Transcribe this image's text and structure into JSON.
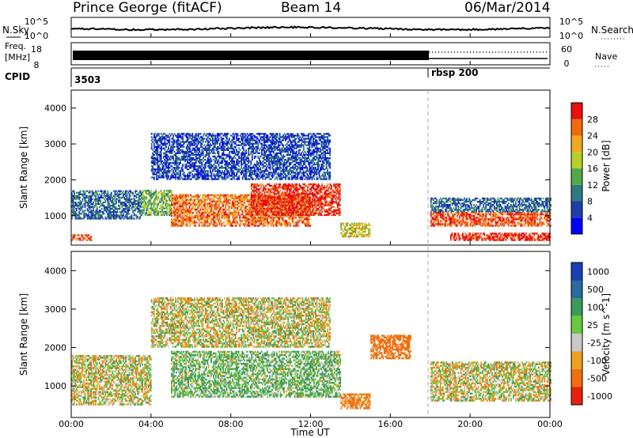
{
  "header": {
    "station": "Prince George (fitACF)",
    "beam": "Beam 14",
    "date": "06/Mar/2014"
  },
  "top_panels": {
    "nsky_label": "N.Sky",
    "nsearch_label": "N.Search",
    "nsky_ticks": [
      "10^5",
      "10^0"
    ],
    "nsearch_ticks": [
      "10^5",
      "10^0"
    ],
    "freq_label": "Freq.",
    "freq_unit": "[MHz]",
    "freq_ticks": [
      "18",
      "8"
    ],
    "nave_label": "Nave",
    "nave_ticks": [
      "60",
      "0"
    ],
    "cpid_label": "CPID",
    "cpid_segments": [
      {
        "label": "3503",
        "start_hour": 0.0
      },
      {
        "label": "rbsp 200",
        "start_hour": 18.0
      }
    ]
  },
  "power_panel": {
    "ylabel": "Slant Range [km]",
    "yticks": [
      1000,
      2000,
      3000,
      4000
    ],
    "colorbar_label": "Power [dB]",
    "colorbar_ticks": [
      "28",
      "24",
      "20",
      "16",
      "12",
      "8",
      "4"
    ],
    "colors": [
      "#0000ff",
      "#1e3fa8",
      "#2f7a82",
      "#53a84a",
      "#b8cf2a",
      "#f0a820",
      "#f06a10",
      "#e81010"
    ]
  },
  "velocity_panel": {
    "ylabel": "Slant Range [km]",
    "yticks": [
      1000,
      2000,
      3000,
      4000
    ],
    "colorbar_label": "Velocity [m s^-1]",
    "colorbar_ticks": [
      "1000",
      "500",
      "100",
      "25",
      "-25",
      "-100",
      "-500",
      "-1000"
    ],
    "colors": [
      "#1a3fb0",
      "#2a6aa0",
      "#3d9a5a",
      "#6ac840",
      "#c8c8c8",
      "#f0a020",
      "#f07010",
      "#e82010"
    ]
  },
  "xaxis": {
    "label": "Time UT",
    "ticks": [
      "00:00",
      "04:00",
      "08:00",
      "12:00",
      "16:00",
      "20:00",
      "00:00"
    ]
  },
  "chart_data": [
    {
      "type": "heatmap",
      "title": "Power",
      "xlabel": "Time UT",
      "ylabel": "Slant Range [km]",
      "xlim": [
        0,
        24
      ],
      "ylim": [
        180,
        4500
      ],
      "colorbar": {
        "label": "Power [dB]",
        "range": [
          0,
          30
        ]
      },
      "echo_bands": [
        {
          "t0": 0.0,
          "t1": 3.5,
          "r0": 900,
          "r1": 1700,
          "value": 8
        },
        {
          "t0": 3.5,
          "t1": 5.0,
          "r0": 1000,
          "r1": 1700,
          "value": 14
        },
        {
          "t0": 5.0,
          "t1": 12.0,
          "r0": 700,
          "r1": 1600,
          "value": 24
        },
        {
          "t0": 9.0,
          "t1": 13.5,
          "r0": 1000,
          "r1": 1900,
          "value": 28
        },
        {
          "t0": 13.5,
          "t1": 15.0,
          "r0": 400,
          "r1": 800,
          "value": 18
        },
        {
          "t0": 0.0,
          "t1": 1.0,
          "r0": 300,
          "r1": 450,
          "value": 26
        },
        {
          "t0": 18.0,
          "t1": 24.0,
          "r0": 700,
          "r1": 1100,
          "value": 26
        },
        {
          "t0": 18.0,
          "t1": 24.0,
          "r0": 1100,
          "r1": 1500,
          "value": 8
        },
        {
          "t0": 19.0,
          "t1": 24.0,
          "r0": 300,
          "r1": 500,
          "value": 28
        },
        {
          "t0": 4.0,
          "t1": 13.0,
          "r0": 2000,
          "r1": 3300,
          "value": 6
        }
      ]
    },
    {
      "type": "heatmap",
      "title": "Velocity",
      "xlabel": "Time UT",
      "ylabel": "Slant Range [km]",
      "xlim": [
        0,
        24
      ],
      "ylim": [
        180,
        4500
      ],
      "colorbar": {
        "label": "Velocity [m s^-1]",
        "range": [
          -1000,
          1000
        ]
      },
      "echo_bands": [
        {
          "t0": 0.0,
          "t1": 4.0,
          "r0": 500,
          "r1": 1800,
          "value": 0
        },
        {
          "t0": 5.0,
          "t1": 13.5,
          "r0": 700,
          "r1": 1900,
          "value": 100
        },
        {
          "t0": 13.5,
          "t1": 15.0,
          "r0": 400,
          "r1": 800,
          "value": -200
        },
        {
          "t0": 15.0,
          "t1": 17.0,
          "r0": 1700,
          "r1": 2300,
          "value": -300
        },
        {
          "t0": 18.0,
          "t1": 24.0,
          "r0": 600,
          "r1": 1600,
          "value": 0
        },
        {
          "t0": 4.0,
          "t1": 13.0,
          "r0": 2000,
          "r1": 3300,
          "value": 0
        }
      ]
    }
  ]
}
